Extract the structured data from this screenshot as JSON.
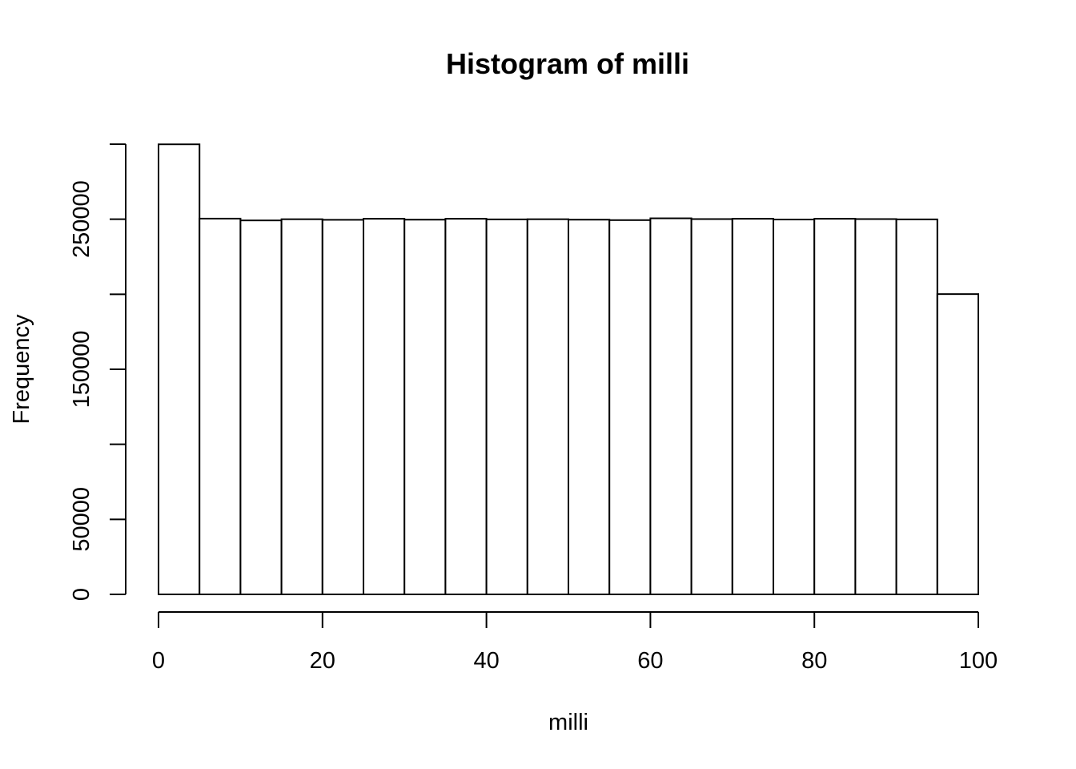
{
  "chart_data": {
    "type": "bar",
    "title": "Histogram of milli",
    "xlabel": "milli",
    "ylabel": "Frequency",
    "breaks": [
      0,
      5,
      10,
      15,
      20,
      25,
      30,
      35,
      40,
      45,
      50,
      55,
      60,
      65,
      70,
      75,
      80,
      85,
      90,
      95,
      100
    ],
    "values": [
      299900,
      250400,
      249200,
      250000,
      249600,
      250300,
      249700,
      250300,
      249900,
      250000,
      249700,
      249400,
      250600,
      250100,
      250300,
      249800,
      250300,
      250100,
      249900,
      200100
    ],
    "xlim": [
      0,
      100
    ],
    "ylim": [
      0,
      300000
    ],
    "x_ticks": [
      0,
      20,
      40,
      60,
      80,
      100
    ],
    "x_tick_labels": [
      "0",
      "20",
      "40",
      "60",
      "80",
      "100"
    ],
    "y_ticks": [
      0,
      50000,
      100000,
      150000,
      200000,
      250000,
      300000
    ],
    "y_tick_labels": [
      "0",
      "50000",
      "",
      "150000",
      "",
      "250000",
      ""
    ],
    "grid": false
  }
}
